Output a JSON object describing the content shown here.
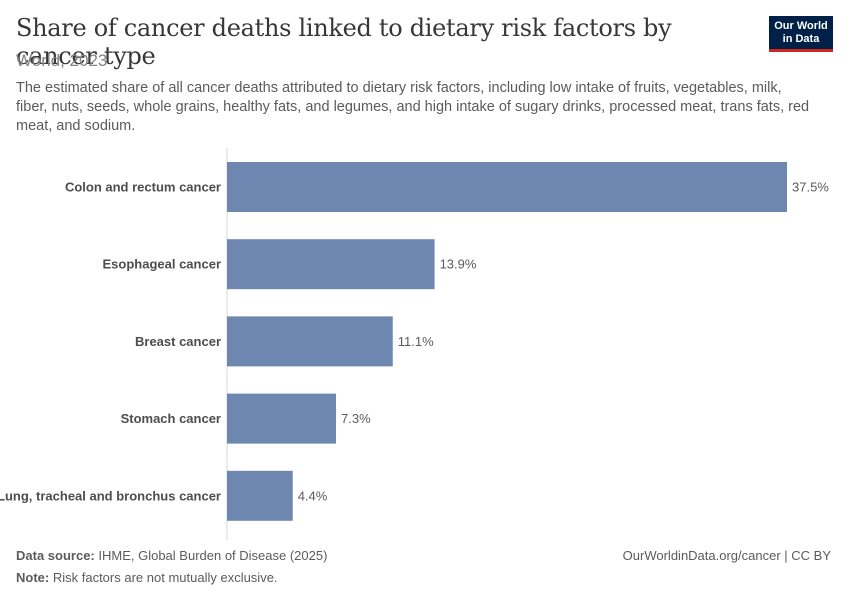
{
  "header": {
    "title": "Share of cancer deaths linked to dietary risk factors by cancer type",
    "subtitle": "World, 2023",
    "description": "The estimated share of all cancer deaths attributed to dietary risk factors, including low intake of fruits, vegetables, milk, fiber, nuts, seeds, whole grains, healthy fats, and legumes, and high intake of sugary drinks, processed meat, trans fats, red meat, and sodium.",
    "logo_text": "Our World in Data"
  },
  "footer": {
    "source_label": "Data source:",
    "source_text": "IHME, Global Burden of Disease (2025)",
    "note_label": "Note:",
    "note_text": "Risk factors are not mutually exclusive.",
    "credit": "OurWorldinData.org/cancer | CC BY"
  },
  "colors": {
    "bar": "#6d87b0",
    "logo_bg": "#002147",
    "logo_accent": "#ce261e"
  },
  "chart_data": {
    "type": "bar",
    "orientation": "horizontal",
    "unit": "%",
    "categories": [
      "Colon and rectum cancer",
      "Esophageal cancer",
      "Breast cancer",
      "Stomach cancer",
      "Lung, tracheal and bronchus cancer"
    ],
    "values": [
      37.5,
      13.9,
      11.1,
      7.3,
      4.4
    ],
    "labels": [
      "37.5%",
      "13.9%",
      "11.1%",
      "7.3%",
      "4.4%"
    ],
    "xlim": [
      0,
      37.5
    ],
    "grid": false
  }
}
